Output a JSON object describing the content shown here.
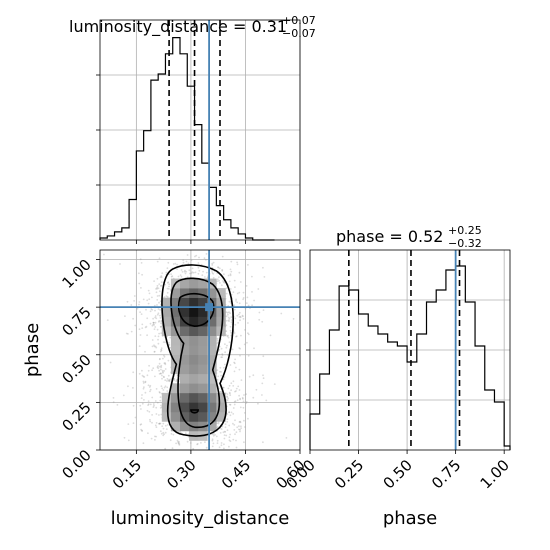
{
  "chart_data": {
    "type": "corner",
    "parameters": [
      "luminosity_distance",
      "phase"
    ],
    "truths": {
      "luminosity_distance": 0.35,
      "phase": 0.75
    },
    "truth_color": "#4682b4",
    "panels": [
      {
        "id": "marginal-luminosity_distance",
        "type": "histogram",
        "parameter": "luminosity_distance",
        "title": {
          "main": "luminosity_distance = 0.31",
          "upper": "+0.07",
          "lower": "−0.07"
        },
        "xlim": [
          0.05,
          0.6
        ],
        "quantiles": [
          0.24,
          0.31,
          0.38
        ],
        "bins": [
          0.05,
          0.07,
          0.09,
          0.11,
          0.13,
          0.15,
          0.17,
          0.19,
          0.21,
          0.23,
          0.25,
          0.27,
          0.29,
          0.31,
          0.33,
          0.35,
          0.37,
          0.39,
          0.41,
          0.43,
          0.45,
          0.47,
          0.49,
          0.51,
          0.53
        ],
        "counts": [
          1,
          2,
          4,
          6,
          20,
          44,
          54,
          79,
          82,
          92,
          100,
          92,
          76,
          57,
          38,
          26,
          17,
          10,
          6,
          3,
          1,
          0,
          0,
          0
        ]
      },
      {
        "id": "marginal-phase",
        "type": "histogram",
        "parameter": "phase",
        "title": {
          "main": "phase = 0.52",
          "upper": "+0.25",
          "lower": "−0.32"
        },
        "xlim": [
          0.0,
          1.03
        ],
        "ylabel": "",
        "quantiles": [
          0.2,
          0.52,
          0.77
        ],
        "bins": [
          0.0,
          0.05,
          0.1,
          0.15,
          0.2,
          0.25,
          0.3,
          0.35,
          0.4,
          0.45,
          0.5,
          0.55,
          0.6,
          0.65,
          0.7,
          0.75,
          0.8,
          0.85,
          0.9,
          0.95,
          1.0,
          1.03
        ],
        "counts": [
          18,
          38,
          60,
          82,
          80,
          68,
          62,
          58,
          54,
          52,
          44,
          58,
          74,
          80,
          90,
          92,
          74,
          52,
          30,
          24,
          2
        ]
      },
      {
        "id": "joint",
        "type": "2d-density",
        "xparam": "luminosity_distance",
        "yparam": "phase",
        "xlim": [
          0.05,
          0.6
        ],
        "ylim": [
          0.0,
          1.05
        ],
        "density_peaks": [
          {
            "x": 0.31,
            "y": 0.72
          },
          {
            "x": 0.31,
            "y": 0.22
          }
        ],
        "contour_levels": 3
      }
    ],
    "axes": {
      "luminosity_distance": {
        "label": "luminosity_distance",
        "ticks": [
          0.15,
          0.3,
          0.45,
          0.6
        ],
        "tick_labels": [
          "0.15",
          "0.30",
          "0.45",
          "0.60"
        ]
      },
      "phase_y": {
        "label": "phase",
        "ticks": [
          0.0,
          0.25,
          0.5,
          0.75,
          1.0
        ],
        "tick_labels": [
          "0.00",
          "0.25",
          "0.50",
          "0.75",
          "1.00"
        ]
      },
      "phase_x": {
        "label": "phase",
        "ticks": [
          0.0,
          0.25,
          0.5,
          0.75,
          1.0
        ],
        "tick_labels": [
          "0.00",
          "0.25",
          "0.50",
          "0.75",
          "1.00"
        ]
      }
    },
    "grid": true
  }
}
